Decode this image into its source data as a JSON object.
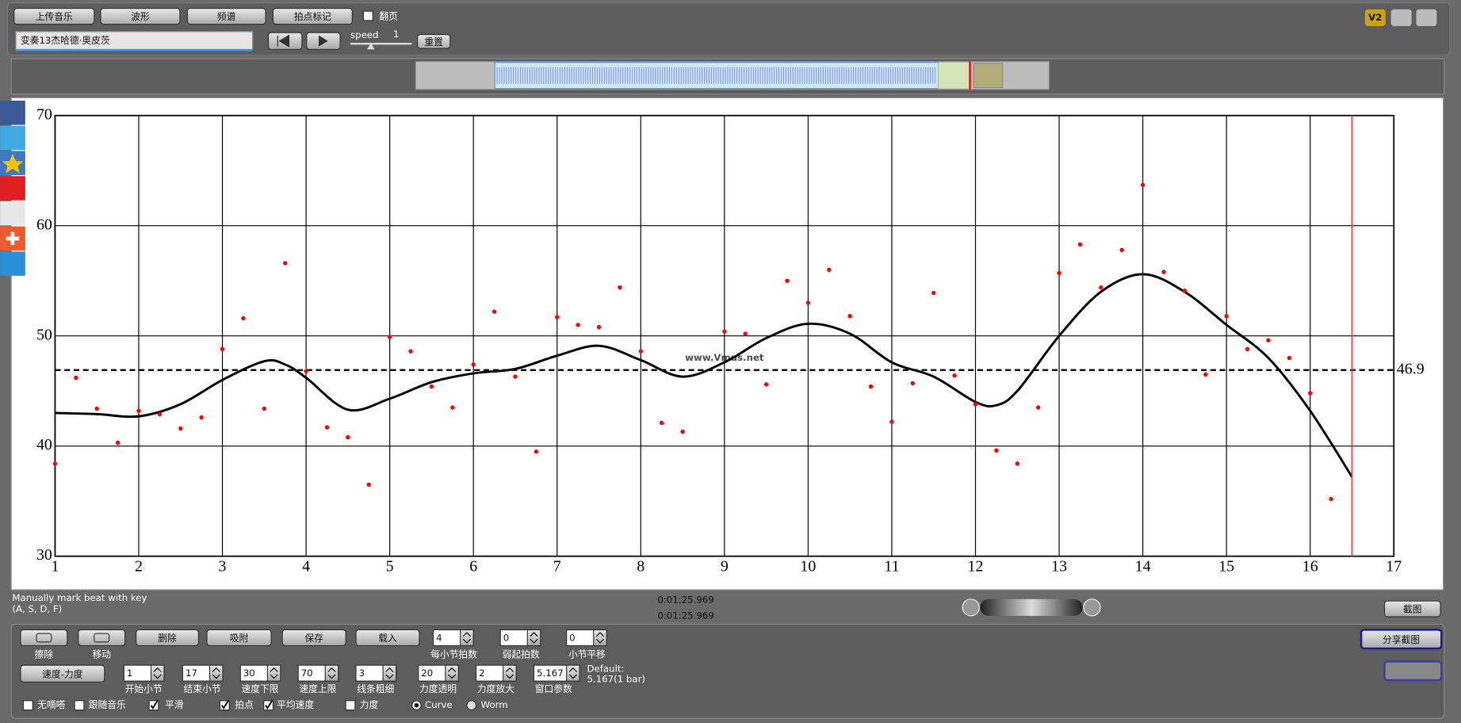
{
  "toolbar": {
    "buttons": [
      "上传音乐",
      "波形",
      "频谱",
      "拍点标记"
    ],
    "page_turn": "翻页",
    "track": "变奏13杰哈德·奥皮茨",
    "speed_label": "speed",
    "speed_value": "1",
    "reset": "重置",
    "version": "V2"
  },
  "chart_data": {
    "type": "scatter",
    "xlim": [
      1,
      17
    ],
    "ylim": [
      30,
      70
    ],
    "xticks": [
      1,
      2,
      3,
      4,
      5,
      6,
      7,
      8,
      9,
      10,
      11,
      12,
      13,
      14,
      15,
      16,
      17
    ],
    "yticks": [
      30,
      40,
      50,
      60,
      70
    ],
    "grid": true,
    "points": {
      "color": "#ff0000",
      "x": [
        1,
        1.25,
        1.5,
        1.75,
        2,
        2.25,
        2.5,
        2.75,
        3,
        3.25,
        3.5,
        3.75,
        4,
        4.25,
        4.5,
        4.75,
        5,
        5.25,
        5.5,
        5.75,
        6,
        6.25,
        6.5,
        6.75,
        7,
        7.25,
        7.5,
        7.75,
        8,
        8.25,
        8.5,
        9,
        9.25,
        9.5,
        9.75,
        10,
        10.25,
        10.5,
        10.75,
        11,
        11.25,
        11.5,
        11.75,
        12,
        12.25,
        12.5,
        12.75,
        13,
        13.25,
        13.5,
        13.75,
        14,
        14.25,
        14.5,
        14.75,
        15,
        15.25,
        15.5,
        15.75,
        16,
        16.25
      ],
      "y": [
        38.4,
        46.2,
        43.4,
        40.3,
        43.2,
        42.9,
        41.6,
        42.6,
        48.8,
        51.6,
        43.4,
        56.6,
        46.8,
        41.7,
        40.8,
        36.5,
        49.9,
        48.6,
        45.4,
        43.5,
        47.4,
        52.2,
        46.3,
        39.5,
        51.7,
        51.0,
        50.8,
        54.4,
        48.6,
        42.1,
        41.3,
        50.4,
        50.2,
        45.6,
        55.0,
        53.0,
        56.0,
        51.8,
        45.4,
        42.2,
        45.7,
        53.9,
        46.4,
        43.8,
        39.6,
        38.4,
        43.5,
        55.7,
        58.3,
        54.4,
        57.8,
        63.7,
        55.8,
        54.1,
        46.5,
        51.8,
        48.8,
        49.6,
        48.0,
        44.8,
        35.2
      ]
    },
    "curve": {
      "color": "#000000",
      "x": [
        1,
        1.5,
        2,
        2.5,
        3,
        3.5,
        3.75,
        4,
        4.5,
        5,
        5.5,
        6,
        6.5,
        7,
        7.5,
        8,
        8.5,
        9,
        9.5,
        10,
        10.5,
        11,
        11.5,
        12,
        12.25,
        12.5,
        13,
        13.5,
        14,
        14.5,
        15,
        15.5,
        16,
        16.5
      ],
      "y": [
        43.0,
        42.9,
        42.7,
        43.8,
        46.0,
        47.7,
        47.4,
        46.2,
        43.3,
        44.3,
        45.8,
        46.6,
        47.0,
        48.2,
        49.1,
        47.8,
        46.3,
        47.6,
        49.8,
        51.1,
        50.2,
        47.6,
        46.3,
        44.0,
        43.7,
        45.0,
        50.0,
        54.0,
        55.6,
        54.0,
        51.0,
        48.0,
        43.2,
        37.2
      ]
    },
    "mean": 46.9,
    "playhead": 16.5,
    "playhead_color": "#ff3333",
    "watermark": "www.Vmus.net"
  },
  "status": {
    "hint": [
      "Manually mark beat with key",
      "(A, S, D, F)"
    ],
    "times": [
      "0:01:25.969",
      "0:01:25.969"
    ],
    "screenshot": "截图",
    "share": "分享截图"
  },
  "controls": {
    "tools": [
      "擦除",
      "移动"
    ],
    "buttons": [
      "删除",
      "吸附",
      "保存",
      "载入"
    ],
    "row1_fields": [
      {
        "value": "4",
        "label": "每小节拍数"
      },
      {
        "value": "0",
        "label": "弱起拍数"
      },
      {
        "value": "0",
        "label": "小节平移"
      }
    ],
    "mode": "速度-力度",
    "row2_fields": [
      {
        "value": "1",
        "label": "开始小节"
      },
      {
        "value": "17",
        "label": "结束小节"
      },
      {
        "value": "30",
        "label": "速度下限"
      },
      {
        "value": "70",
        "label": "速度上限"
      },
      {
        "value": "3",
        "label": "线条粗细"
      },
      {
        "value": "20",
        "label": "力度透明"
      },
      {
        "value": "2",
        "label": "力度放大"
      },
      {
        "value": "5.167",
        "label": "窗口参数"
      }
    ],
    "default": [
      "Default:",
      "5.167(1 bar)"
    ],
    "checks": [
      {
        "label": "无嘀嗒",
        "checked": false
      },
      {
        "label": "跟随音乐",
        "checked": false
      },
      {
        "label": "平滑",
        "checked": true
      },
      {
        "label": "拍点",
        "checked": true
      },
      {
        "label": "平均速度",
        "checked": true
      },
      {
        "label": "力度",
        "checked": false
      }
    ],
    "radios": [
      {
        "label": "Curve",
        "selected": true
      },
      {
        "label": "Worm",
        "selected": false
      }
    ]
  }
}
